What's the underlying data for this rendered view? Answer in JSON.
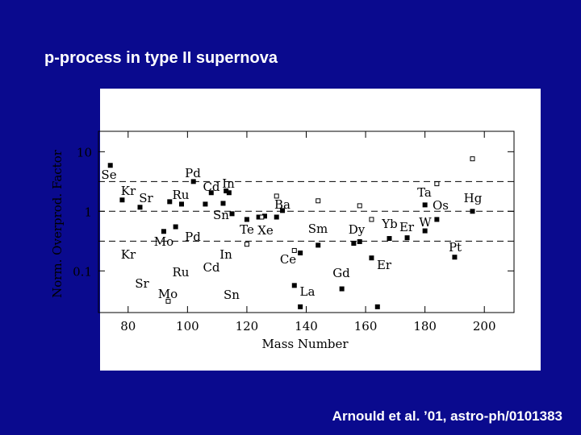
{
  "chart_data": {
    "type": "scatter",
    "title": "p-process in type II supernova",
    "source": "Arnould et al. ’01, astro-ph/0101383",
    "x_label": "Mass Number",
    "y_label": "Norm. Overprod. Factor",
    "xlim": [
      70,
      210
    ],
    "xticks": [
      80,
      100,
      120,
      140,
      160,
      180,
      200
    ],
    "ylim": [
      0.02,
      22
    ],
    "yticks": [
      0.1,
      1,
      10
    ],
    "log_y": true,
    "reference_lines": [
      3.16,
      1,
      0.316
    ],
    "series": [
      {
        "marker": "filled",
        "color": "#000000",
        "x": [
          74,
          78,
          84,
          92,
          94,
          96,
          98,
          102,
          106,
          108,
          112,
          113,
          114,
          115,
          120,
          124,
          126,
          130,
          132,
          138,
          136,
          138,
          144,
          152,
          156,
          158,
          162,
          164,
          168,
          174,
          180,
          184,
          190,
          196,
          180
        ],
        "values": [
          5.9,
          1.55,
          1.17,
          0.46,
          1.45,
          0.55,
          1.32,
          3.16,
          1.32,
          2.05,
          1.36,
          2.2,
          2.05,
          0.91,
          0.73,
          0.8,
          0.83,
          0.8,
          1.03,
          0.2,
          0.057,
          0.025,
          0.27,
          0.05,
          0.29,
          0.31,
          0.165,
          0.025,
          0.35,
          0.36,
          0.47,
          0.73,
          0.17,
          1.0,
          1.28
        ]
      },
      {
        "marker": "open",
        "color": "#000000",
        "x": [
          196,
          184,
          158,
          144,
          120,
          136,
          130,
          93.5,
          162,
          125
        ],
        "values": [
          7.6,
          2.9,
          1.24,
          1.5,
          0.28,
          0.22,
          1.8,
          0.031,
          0.73,
          0.8
        ]
      }
    ],
    "annotations": [
      "Se",
      "Kr",
      "Sr",
      "Ru",
      "Pd",
      "Cd",
      "In",
      "Sn",
      "Te",
      "Xe",
      "Ba",
      "Mo",
      "Pd",
      "Kr",
      "Ru",
      "Sr",
      "Mo",
      "Cd",
      "In",
      "Sn",
      "Sm",
      "Dy",
      "Yb",
      "Er",
      "Ta",
      "Os",
      "W",
      "Hg",
      "Pt",
      "Ce",
      "La",
      "Gd",
      "Er"
    ]
  }
}
